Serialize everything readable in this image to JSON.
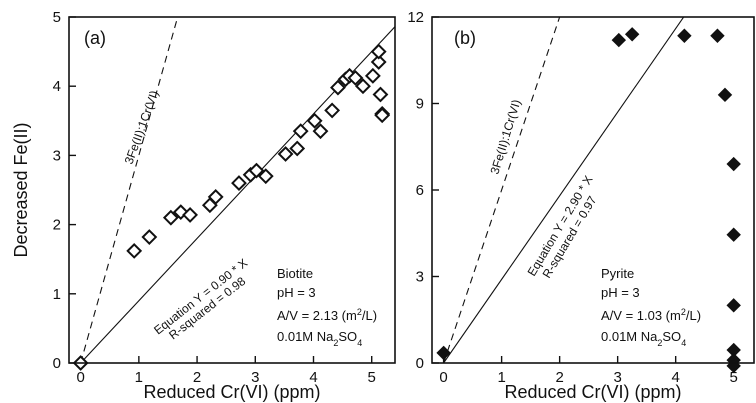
{
  "chart_data": [
    {
      "type": "scatter",
      "panel_label": "(a)",
      "xlabel": "Reduced Cr(VI) (ppm)",
      "ylabel": "Decreased Fe(II)",
      "xlim": [
        -0.2,
        5.4
      ],
      "ylim": [
        0,
        5
      ],
      "xticks": [
        "0",
        "1",
        "2",
        "3",
        "4",
        "5"
      ],
      "yticks": [
        "0",
        "1",
        "2",
        "3",
        "4",
        "5"
      ],
      "grid": false,
      "marker": "open-diamond",
      "series": [
        {
          "x": [
            0.0,
            0.92,
            1.18,
            1.55,
            1.72,
            1.88,
            2.22,
            2.32,
            2.72,
            2.92,
            3.02,
            3.18,
            3.52,
            3.72,
            3.78,
            4.02,
            4.12,
            4.32,
            4.42,
            4.55,
            4.62,
            4.72,
            4.85,
            5.02,
            5.12,
            5.12,
            5.15,
            5.18,
            5.18
          ],
          "y": [
            0.0,
            1.62,
            1.82,
            2.1,
            2.18,
            2.14,
            2.28,
            2.4,
            2.6,
            2.72,
            2.78,
            2.7,
            3.02,
            3.1,
            3.35,
            3.5,
            3.35,
            3.65,
            3.98,
            4.1,
            4.15,
            4.12,
            4.0,
            4.15,
            4.35,
            4.5,
            3.88,
            3.6,
            3.58
          ]
        }
      ],
      "fit_line": {
        "slope": 0.9,
        "label_equation": "Equation Y = 0.90 * X",
        "label_r2": "R-squared = 0.98"
      },
      "ratio_line": {
        "slope": 3.0,
        "label": "3Fe(II):1Cr(VI)"
      },
      "info": {
        "mineral": "Biotite",
        "ph": "pH = 3",
        "av_prefix": "A/V = 2.13 (m",
        "av_sup": "2",
        "av_suffix": "/L)",
        "salt_prefix": "0.01M Na",
        "salt_sub1": "2",
        "salt_mid": "SO",
        "salt_sub2": "4"
      }
    },
    {
      "type": "scatter",
      "panel_label": "(b)",
      "xlabel": "Reduced Cr(VI) (ppm)",
      "ylabel": "",
      "xlim": [
        -0.2,
        5.35
      ],
      "ylim": [
        0,
        12
      ],
      "xticks": [
        "0",
        "1",
        "2",
        "3",
        "4",
        "5"
      ],
      "yticks": [
        "0",
        "3",
        "6",
        "9",
        "12"
      ],
      "grid": false,
      "marker": "filled-diamond",
      "series": [
        {
          "x": [
            0.0,
            3.02,
            3.25,
            4.15,
            4.72,
            4.85,
            5.0,
            5.0,
            5.0,
            5.0,
            5.0,
            5.0
          ],
          "y": [
            0.35,
            11.2,
            11.4,
            11.35,
            11.35,
            9.3,
            6.9,
            4.45,
            2.0,
            0.45,
            0.1,
            -0.1
          ]
        }
      ],
      "fit_line": {
        "slope": 2.9,
        "label_equation": "Equation Y = 2.90 * X",
        "label_r2": "R-squared = 0.97"
      },
      "ratio_line": {
        "slope": 6.0,
        "label": "3Fe(II):1Cr(VI)"
      },
      "info": {
        "mineral": "Pyrite",
        "ph": "pH = 3",
        "av_prefix": "A/V = 1.03 (m",
        "av_sup": "2",
        "av_suffix": "/L)",
        "salt_prefix": "0.01M Na",
        "salt_sub1": "2",
        "salt_mid": "SO",
        "salt_sub2": "4"
      }
    }
  ]
}
